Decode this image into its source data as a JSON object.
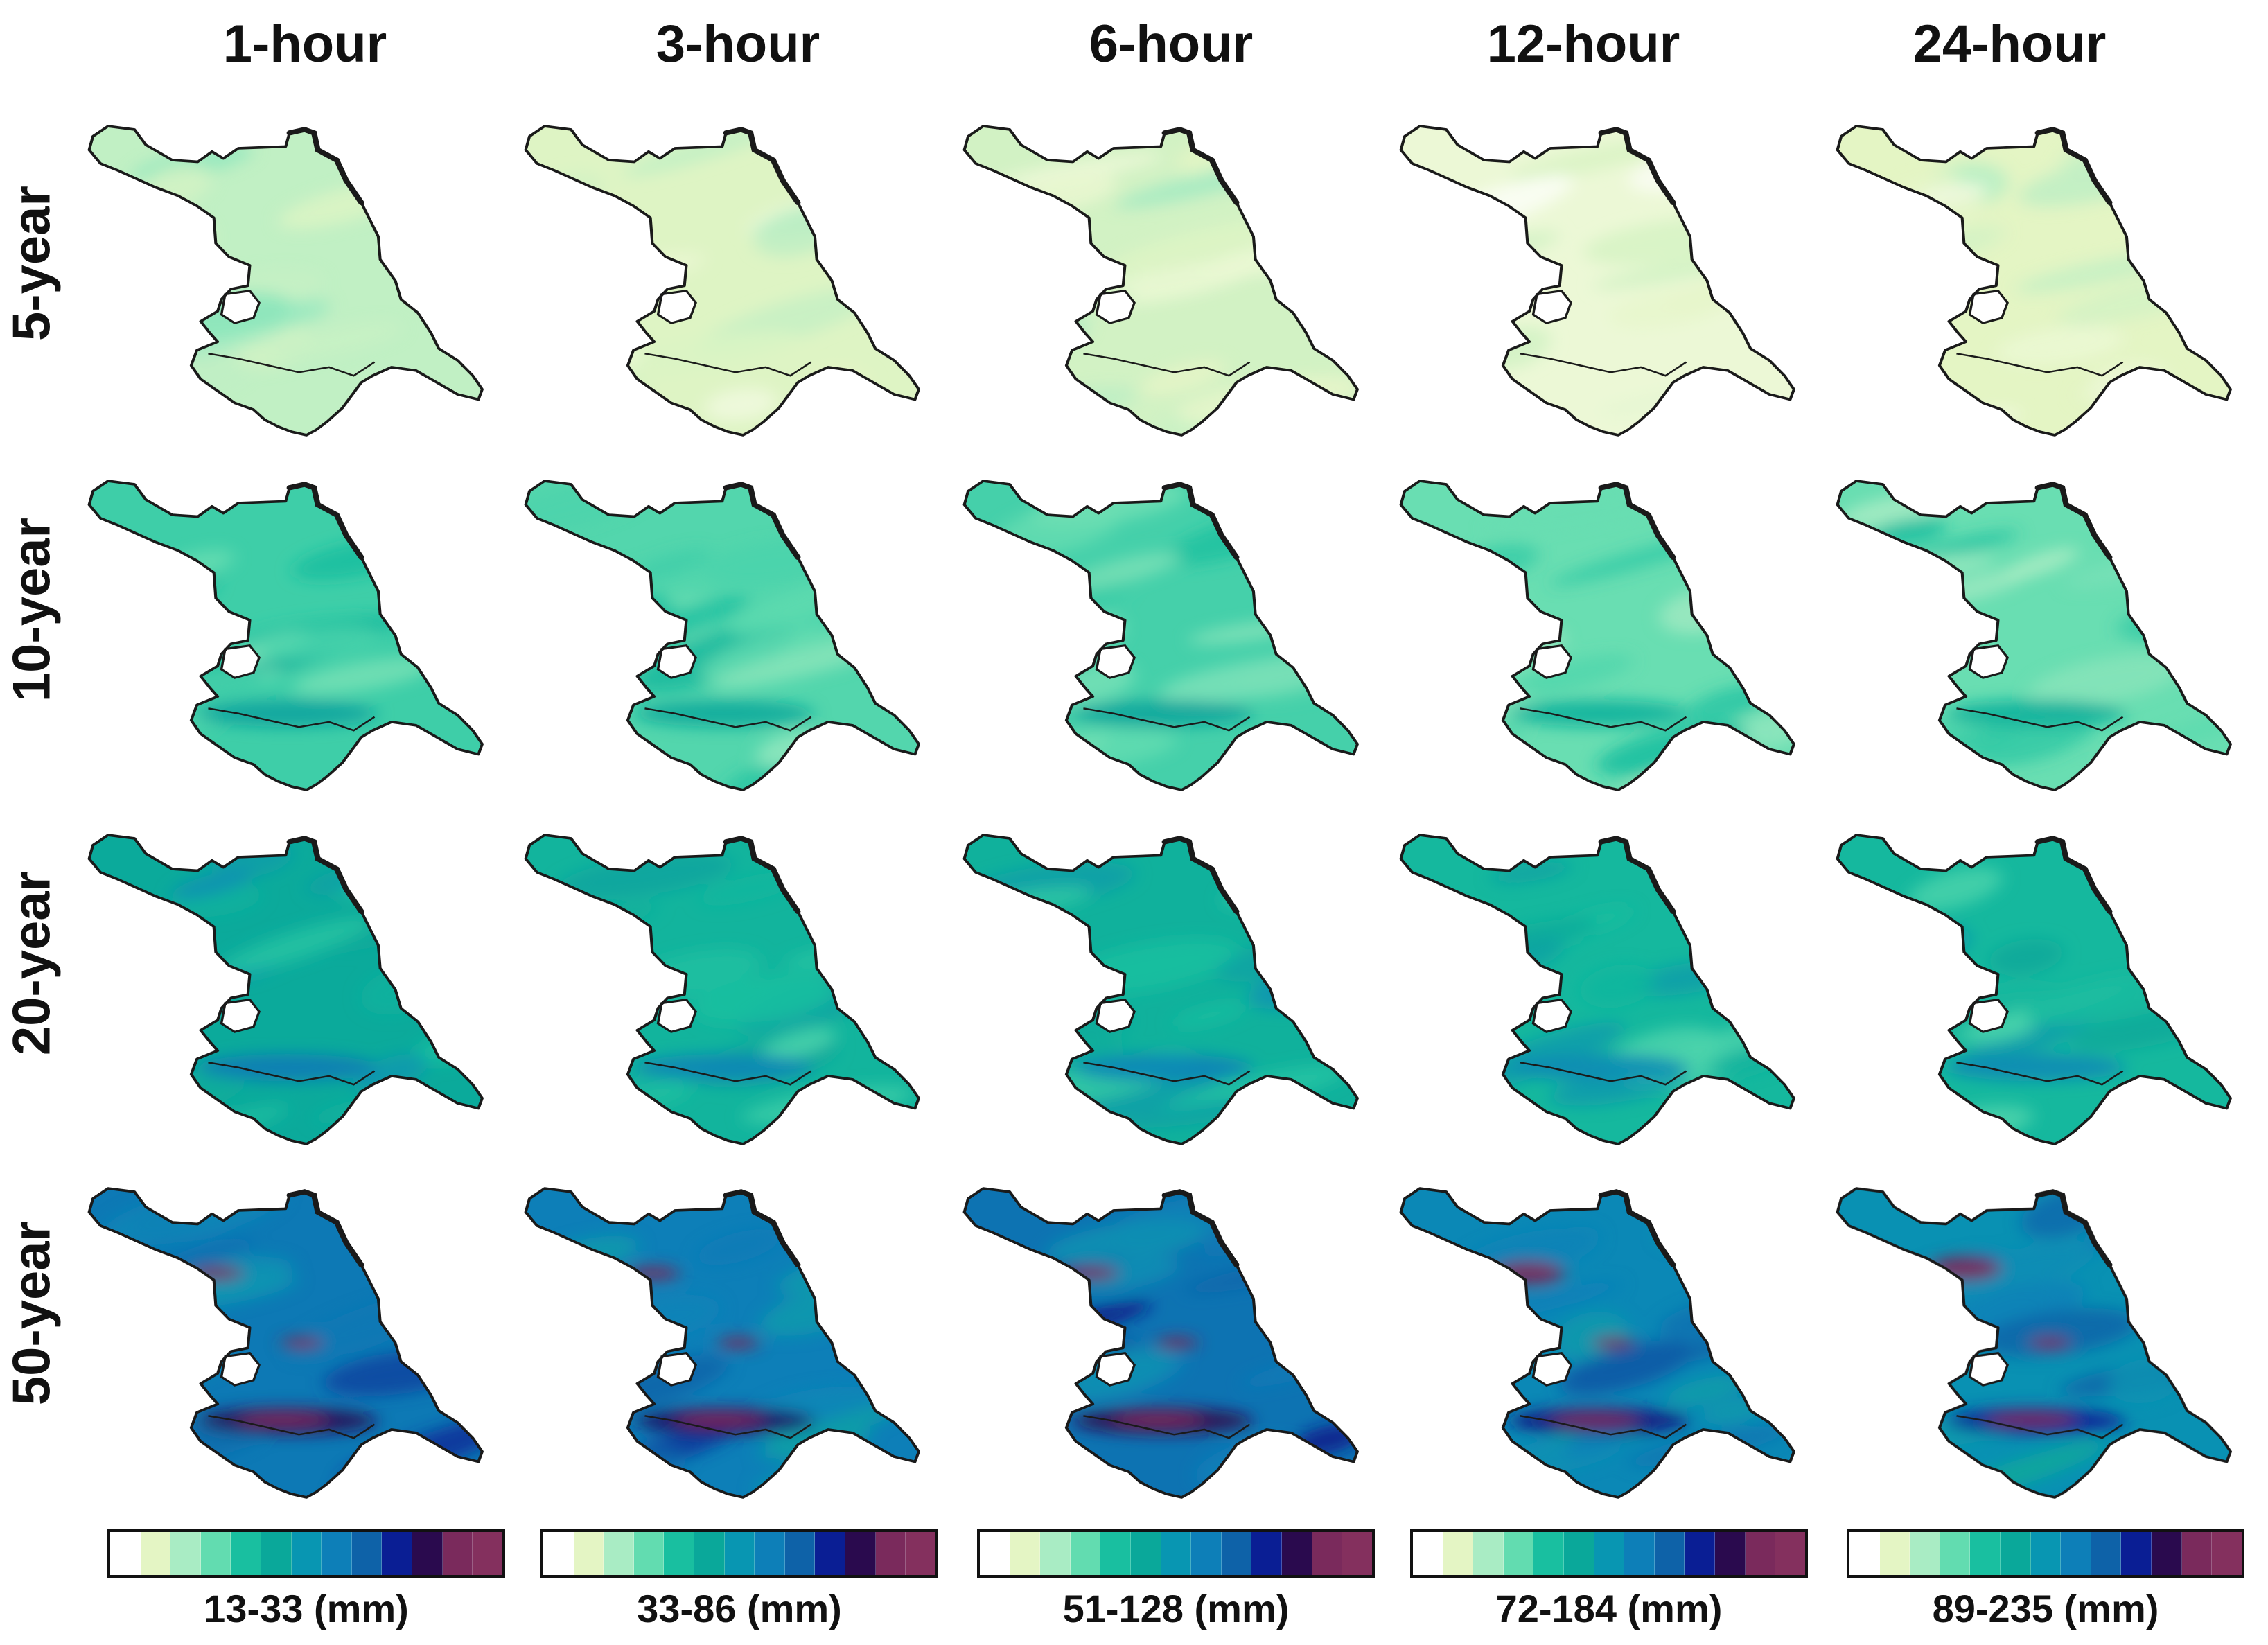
{
  "durations": [
    "1-hour",
    "3-hour",
    "6-hour",
    "12-hour",
    "24-hour"
  ],
  "return_periods": [
    "5-year",
    "10-year",
    "20-year",
    "50-year"
  ],
  "legends": [
    {
      "range": "13-33 (mm)"
    },
    {
      "range": "33-86 (mm)"
    },
    {
      "range": "51-128 (mm)"
    },
    {
      "range": "72-184 (mm)"
    },
    {
      "range": "89-235 (mm)"
    }
  ],
  "palette": [
    "#ffffff",
    "#e4f5c4",
    "#a9ecc4",
    "#62dcb0",
    "#19bfa0",
    "#0aa89a",
    "#0896b2",
    "#0d7fb8",
    "#0e62a8",
    "#0a1e94",
    "#2a0a4e",
    "#7a2a5c",
    "#84305e"
  ],
  "panel_levels": [
    [
      1.6,
      1.1,
      1.3,
      0.7,
      1.0
    ],
    [
      3.5,
      3.2,
      3.4,
      2.9,
      2.9
    ],
    [
      4.9,
      4.5,
      4.6,
      4.3,
      4.3
    ],
    [
      7.2,
      7.0,
      7.4,
      6.6,
      6.2
    ]
  ]
}
